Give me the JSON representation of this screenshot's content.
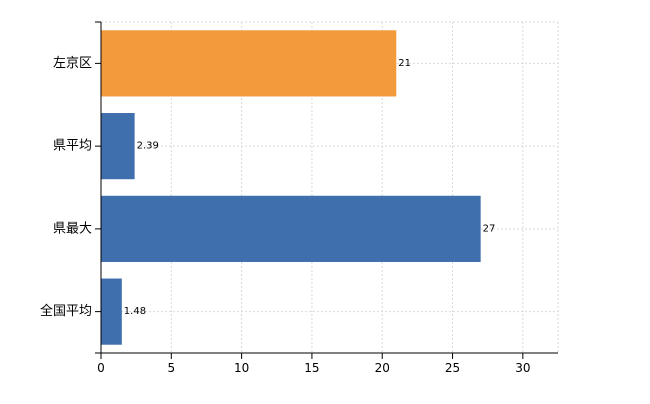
{
  "chart_data": {
    "type": "bar",
    "orientation": "horizontal",
    "categories": [
      "左京区",
      "県平均",
      "県最大",
      "全国平均"
    ],
    "values": [
      21,
      2.39,
      27,
      1.48
    ],
    "value_labels": [
      "21",
      "2.39",
      "27",
      "1.48"
    ],
    "bar_colors": [
      "#f39a3c",
      "#3f6fad",
      "#3f6fad",
      "#3f6fad"
    ],
    "xlim": [
      0,
      32.5
    ],
    "x_ticks": [
      0,
      5,
      10,
      15,
      20,
      25,
      30
    ],
    "x_tick_labels": [
      "0",
      "5",
      "10",
      "15",
      "20",
      "25",
      "30"
    ],
    "grid": true,
    "title": "",
    "xlabel": "",
    "ylabel": ""
  }
}
